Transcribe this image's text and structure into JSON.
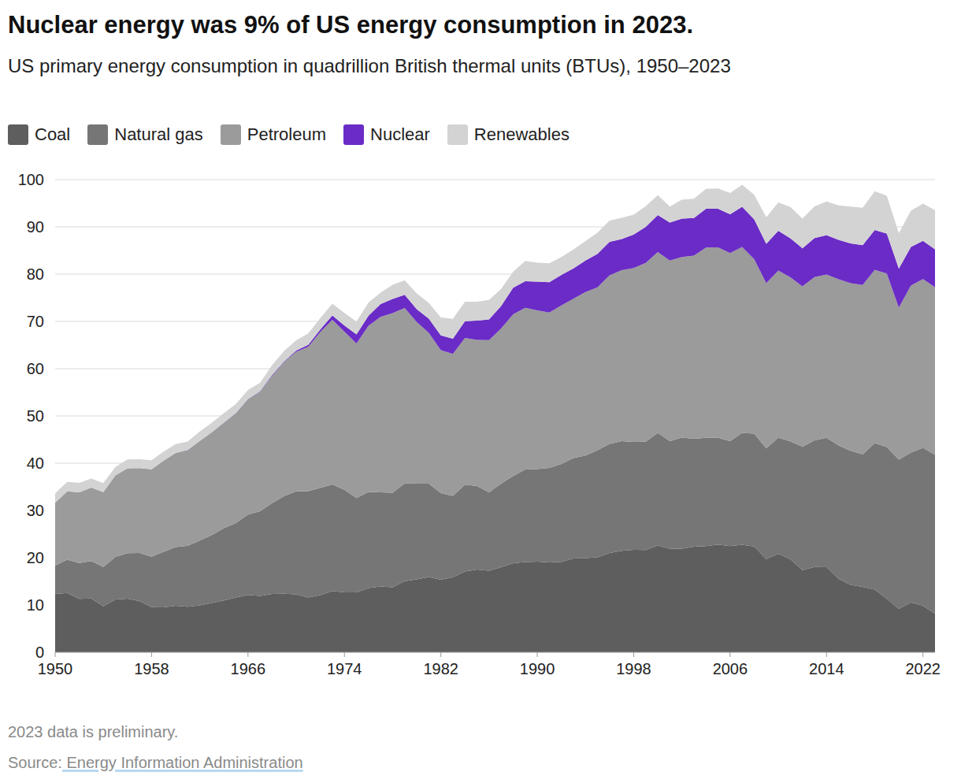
{
  "chart_data": {
    "type": "area",
    "title": "Nuclear energy was 9% of US energy consumption in 2023.",
    "subtitle": "US primary energy consumption in quadrillion British thermal units (BTUs), 1950–2023",
    "note": "2023 data is preliminary.",
    "source": "Source: Energy Information Administration",
    "stacked": true,
    "grid": true,
    "legend": "top-left",
    "x": [
      1950,
      1951,
      1952,
      1953,
      1954,
      1955,
      1956,
      1957,
      1958,
      1959,
      1960,
      1961,
      1962,
      1963,
      1964,
      1965,
      1966,
      1967,
      1968,
      1969,
      1970,
      1971,
      1972,
      1973,
      1974,
      1975,
      1976,
      1977,
      1978,
      1979,
      1980,
      1981,
      1982,
      1983,
      1984,
      1985,
      1986,
      1987,
      1988,
      1989,
      1990,
      1991,
      1992,
      1993,
      1994,
      1995,
      1996,
      1997,
      1998,
      1999,
      2000,
      2001,
      2002,
      2003,
      2004,
      2005,
      2006,
      2007,
      2008,
      2009,
      2010,
      2011,
      2012,
      2013,
      2014,
      2015,
      2016,
      2017,
      2018,
      2019,
      2020,
      2021,
      2022,
      2023
    ],
    "xlim": [
      1950,
      2023
    ],
    "xticks": [
      1950,
      1958,
      1966,
      1974,
      1982,
      1990,
      1998,
      2006,
      2014,
      2022
    ],
    "ylim": [
      0,
      100
    ],
    "yticks": [
      0,
      10,
      20,
      30,
      40,
      50,
      60,
      70,
      80,
      90,
      100
    ],
    "series": [
      {
        "name": "Coal",
        "color": "#5e5e5e",
        "values": [
          12.35,
          12.55,
          11.31,
          11.37,
          9.72,
          11.17,
          11.35,
          10.82,
          9.53,
          9.52,
          9.84,
          9.62,
          9.91,
          10.41,
          10.96,
          11.58,
          12.14,
          11.91,
          12.33,
          12.38,
          12.27,
          11.6,
          12.08,
          12.97,
          12.66,
          12.66,
          13.58,
          13.92,
          13.77,
          15.04,
          15.42,
          15.91,
          15.32,
          15.89,
          17.07,
          17.48,
          17.26,
          18.01,
          18.85,
          19.07,
          19.17,
          18.99,
          19.12,
          19.84,
          19.91,
          20.09,
          21.0,
          21.45,
          21.66,
          21.62,
          22.58,
          21.91,
          21.9,
          22.32,
          22.47,
          22.8,
          22.45,
          22.75,
          22.39,
          19.69,
          20.83,
          19.66,
          17.38,
          18.04,
          17.99,
          15.55,
          14.23,
          13.84,
          13.25,
          11.32,
          9.18,
          10.55,
          9.85,
          8.17
        ]
      },
      {
        "name": "Natural gas",
        "color": "#767676",
        "values": [
          5.97,
          7.05,
          7.55,
          7.91,
          8.33,
          8.99,
          9.61,
          10.19,
          10.66,
          11.72,
          12.39,
          12.93,
          13.73,
          14.4,
          15.29,
          15.77,
          16.99,
          17.94,
          19.21,
          20.68,
          21.79,
          22.47,
          22.7,
          22.51,
          21.73,
          19.95,
          20.35,
          19.93,
          20.0,
          20.67,
          20.24,
          19.75,
          18.36,
          17.2,
          18.38,
          17.7,
          16.59,
          17.64,
          18.45,
          19.6,
          19.6,
          20.03,
          20.71,
          21.23,
          21.73,
          22.67,
          23.09,
          23.22,
          22.83,
          22.91,
          23.82,
          22.77,
          23.51,
          22.83,
          22.91,
          22.56,
          22.22,
          23.66,
          23.84,
          23.42,
          24.57,
          24.96,
          26.09,
          26.81,
          27.38,
          28.19,
          28.4,
          28.03,
          31.0,
          32.1,
          31.55,
          31.71,
          33.41,
          33.64
        ]
      },
      {
        "name": "Petroleum",
        "color": "#9b9b9b",
        "values": [
          13.32,
          14.43,
          14.96,
          15.56,
          15.84,
          17.25,
          17.94,
          17.93,
          18.53,
          19.32,
          19.92,
          20.22,
          21.05,
          21.7,
          22.3,
          23.25,
          24.4,
          25.28,
          26.98,
          28.34,
          29.52,
          30.56,
          32.95,
          34.84,
          33.45,
          32.73,
          35.17,
          37.12,
          37.97,
          37.12,
          34.2,
          31.93,
          30.23,
          30.05,
          31.05,
          30.92,
          32.2,
          32.87,
          34.22,
          34.21,
          33.55,
          32.85,
          33.53,
          33.74,
          34.56,
          34.44,
          35.66,
          36.16,
          36.82,
          37.84,
          38.26,
          38.19,
          38.2,
          38.76,
          40.23,
          40.3,
          39.79,
          39.36,
          36.93,
          34.96,
          35.35,
          34.71,
          33.94,
          34.51,
          34.55,
          35.18,
          35.45,
          35.84,
          36.65,
          36.71,
          32.17,
          35.34,
          35.71,
          35.43
        ]
      },
      {
        "name": "Nuclear",
        "color": "#6a2bc6",
        "values": [
          0,
          0,
          0,
          0,
          0,
          0,
          0,
          0,
          0,
          0,
          0.01,
          0.02,
          0.03,
          0.04,
          0.04,
          0.04,
          0.06,
          0.09,
          0.14,
          0.15,
          0.24,
          0.41,
          0.58,
          0.91,
          1.27,
          1.9,
          2.11,
          2.7,
          3.02,
          2.78,
          2.74,
          3.01,
          3.13,
          3.2,
          3.55,
          4.08,
          4.38,
          4.75,
          5.59,
          5.6,
          6.1,
          6.42,
          6.48,
          6.41,
          6.69,
          7.08,
          7.09,
          6.6,
          7.07,
          7.61,
          7.86,
          8.03,
          8.15,
          7.96,
          8.22,
          8.16,
          8.21,
          8.46,
          8.43,
          8.36,
          8.43,
          8.27,
          8.06,
          8.27,
          8.34,
          8.34,
          8.43,
          8.42,
          8.44,
          8.45,
          8.25,
          8.13,
          8.06,
          8.02
        ]
      },
      {
        "name": "Renewables",
        "color": "#d3d3d3",
        "values": [
          2.0,
          2.0,
          2.0,
          1.9,
          1.9,
          1.8,
          1.9,
          1.9,
          1.9,
          1.9,
          1.9,
          1.8,
          2.0,
          2.0,
          2.0,
          1.9,
          1.9,
          1.8,
          2.1,
          2.2,
          2.2,
          2.4,
          2.4,
          2.5,
          2.7,
          2.7,
          2.8,
          2.4,
          3.0,
          3.1,
          3.3,
          3.3,
          3.8,
          4.2,
          4.1,
          4.0,
          4.1,
          3.6,
          3.4,
          4.3,
          4.0,
          4.0,
          3.8,
          4.0,
          4.1,
          4.5,
          4.5,
          4.5,
          4.2,
          4.4,
          4.2,
          3.4,
          4.0,
          4.1,
          4.2,
          4.3,
          4.5,
          4.7,
          5.2,
          5.6,
          6.0,
          6.6,
          6.3,
          6.7,
          7.1,
          7.3,
          7.8,
          7.9,
          8.2,
          8.0,
          7.5,
          7.7,
          7.9,
          8.3
        ]
      }
    ]
  }
}
